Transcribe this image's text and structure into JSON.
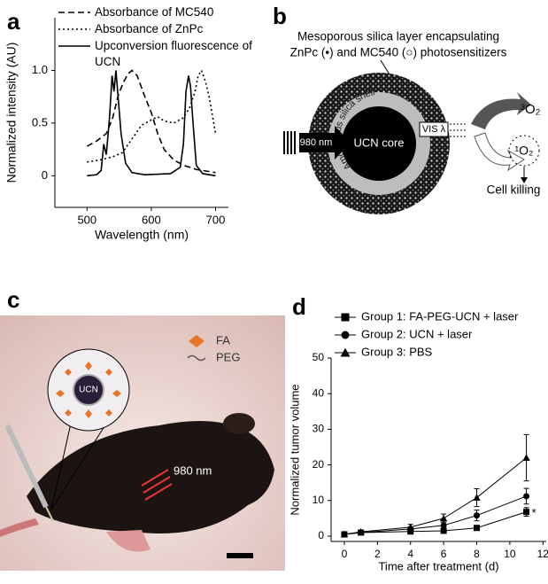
{
  "panel_labels": [
    "a",
    "b",
    "c",
    "d"
  ],
  "chart_data": [
    {
      "type": "line",
      "xlabel": "Wavelength (nm)",
      "ylabel": "Normalized intensity (AU)",
      "xlim": [
        450,
        720
      ],
      "ylim": [
        -0.3,
        1.5
      ],
      "xticks": [
        500,
        600,
        700
      ],
      "yticks": [
        0,
        0.5,
        {
          "value": 1,
          "label": "1.0"
        }
      ],
      "series": [
        {
          "name": "Absorbance of MC540",
          "color": "#000000",
          "dash": "dashed",
          "x": [
            500,
            515,
            530,
            540,
            548,
            556,
            564,
            570,
            578,
            590,
            600,
            610,
            620,
            635,
            650,
            670,
            700
          ],
          "values": [
            0.28,
            0.33,
            0.4,
            0.55,
            0.75,
            0.88,
            0.97,
            1.0,
            0.95,
            0.75,
            0.6,
            0.4,
            0.25,
            0.15,
            0.1,
            0.06,
            0.03
          ]
        },
        {
          "name": "Absorbance of ZnPc",
          "color": "#000000",
          "dash": "dotted",
          "x": [
            500,
            520,
            540,
            555,
            570,
            585,
            600,
            610,
            620,
            635,
            650,
            660,
            668,
            673,
            678,
            684,
            690,
            700
          ],
          "values": [
            0.13,
            0.15,
            0.18,
            0.22,
            0.35,
            0.48,
            0.53,
            0.56,
            0.52,
            0.5,
            0.55,
            0.65,
            0.8,
            0.95,
            1.0,
            0.9,
            0.75,
            0.4
          ]
        },
        {
          "name": "Upconversion fluorescence of UCN",
          "color": "#000000",
          "dash": "solid",
          "x": [
            500,
            515,
            522,
            526,
            530,
            535,
            539,
            542,
            545,
            549,
            553,
            560,
            570,
            590,
            630,
            645,
            650,
            654,
            658,
            661,
            665,
            670,
            680,
            700
          ],
          "values": [
            0,
            0.01,
            0.05,
            0.3,
            0.2,
            0.55,
            0.95,
            0.8,
            1.0,
            0.7,
            0.4,
            0.12,
            0.03,
            0.01,
            0.02,
            0.08,
            0.3,
            0.8,
            0.95,
            0.85,
            0.5,
            0.1,
            0.02,
            0
          ]
        }
      ]
    },
    {
      "type": "line",
      "xlabel": "Time after treatment (d)",
      "ylabel": "Normalized tumor volume",
      "xlim": [
        -0.8,
        12.2
      ],
      "ylim": [
        -1.5,
        50
      ],
      "xticks": [
        0,
        2,
        4,
        6,
        8,
        10,
        12
      ],
      "yticks": [
        0,
        10,
        20,
        30,
        40,
        50
      ],
      "x": [
        0,
        1,
        4,
        6,
        8,
        11
      ],
      "annotation": "*",
      "series": [
        {
          "name": "Group 1: FA-PEG-UCN + laser",
          "color": "#000000",
          "marker": "square",
          "values": [
            0.5,
            1,
            1.3,
            1.5,
            2.3,
            6.8
          ],
          "errors": [
            0.2,
            0.3,
            0.4,
            0.5,
            0.6,
            1.2
          ]
        },
        {
          "name": "Group 2: UCN + laser",
          "color": "#000000",
          "marker": "circle",
          "values": [
            0.5,
            1,
            2,
            3,
            5.8,
            11.2
          ],
          "errors": [
            0.2,
            0.3,
            0.6,
            1.2,
            1.5,
            2.2
          ]
        },
        {
          "name": "Group 3: PBS",
          "color": "#000000",
          "marker": "triangle",
          "values": [
            0.5,
            1.2,
            2.5,
            5,
            10.8,
            22
          ],
          "errors": [
            0.2,
            0.3,
            0.8,
            1.2,
            2.5,
            6.5
          ]
        }
      ]
    }
  ],
  "diagram": {
    "title_line1": "Mesoporous silica layer encapsulating",
    "title_line2": "ZnPc (•) and MC540 (○) photosensitizers",
    "shell_label": "Amorphous silica shell",
    "core_label": "UCN core",
    "input_label": "980 nm",
    "output_label": "VIS λ",
    "triplet_oxygen": "³O₂",
    "singlet_oxygen": "¹O₂",
    "result": "Cell killing"
  },
  "photo": {
    "inset_label": "UCN",
    "legend": [
      "FA",
      "PEG"
    ],
    "laser_label": "980 nm"
  }
}
